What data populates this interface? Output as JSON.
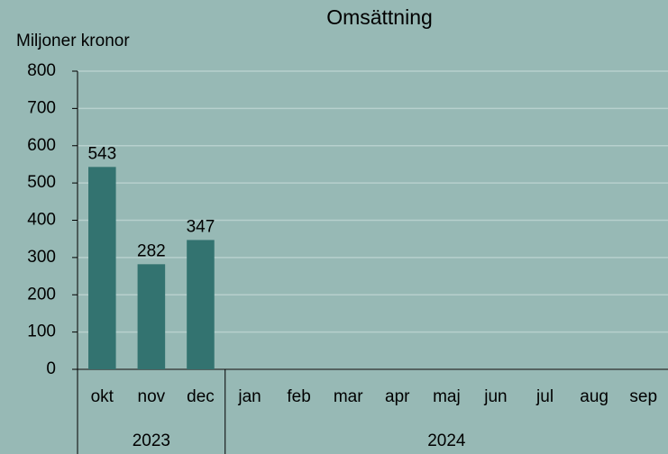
{
  "chart_data": {
    "type": "bar",
    "title": "Omsättning",
    "y_axis_label": "Miljoner kronor",
    "categories": [
      "okt",
      "nov",
      "dec",
      "jan",
      "feb",
      "mar",
      "apr",
      "maj",
      "jun",
      "jul",
      "aug",
      "sep"
    ],
    "years": [
      "2023",
      null,
      null,
      "2024",
      null,
      null,
      null,
      null,
      null,
      null,
      null,
      null
    ],
    "values": [
      543,
      282,
      347,
      null,
      null,
      null,
      null,
      null,
      null,
      null,
      null,
      null
    ],
    "color": "#337370",
    "ylim": [
      0,
      800
    ],
    "yticks": [
      0,
      100,
      200,
      300,
      400,
      500,
      600,
      700,
      800
    ],
    "grid": true
  }
}
